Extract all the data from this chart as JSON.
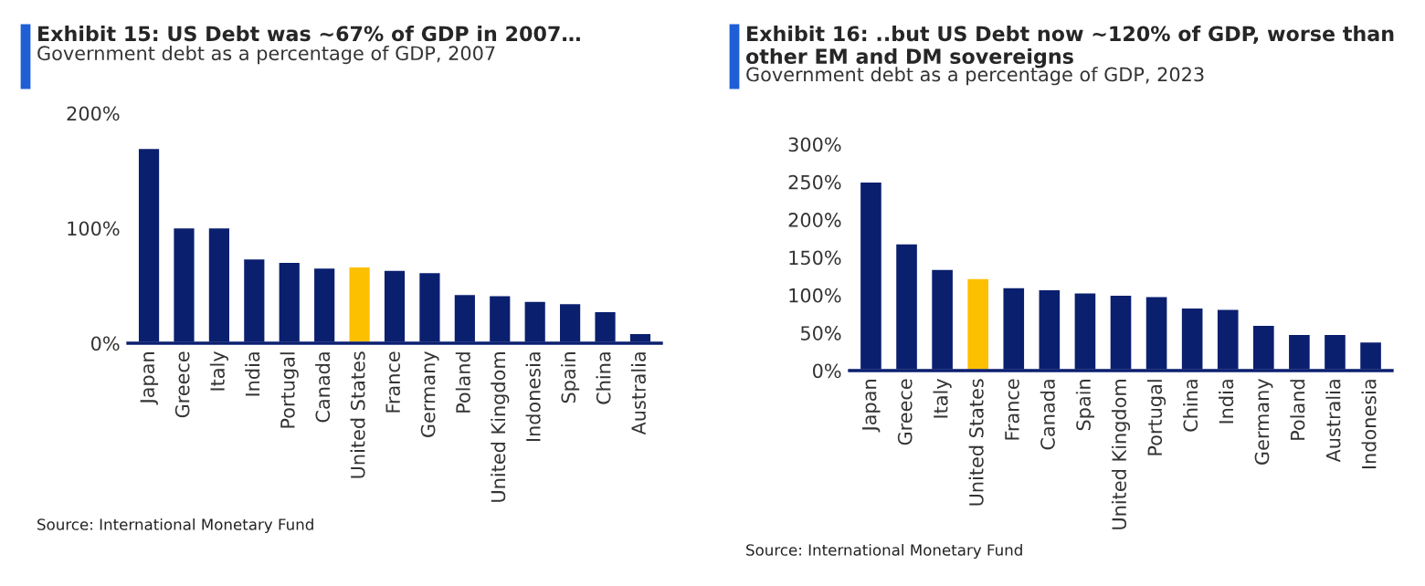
{
  "chart_data": [
    {
      "type": "bar",
      "title": "Exhibit 15: US Debt was ~67% of GDP in 2007…",
      "subtitle": "Government debt as a percentage of GDP, 2007",
      "categories": [
        "Japan",
        "Greece",
        "Italy",
        "India",
        "Portugal",
        "Canada",
        "United States",
        "France",
        "Germany",
        "Poland",
        "United Kingdom",
        "Indonesia",
        "Spain",
        "China",
        "Australia"
      ],
      "values": [
        170,
        101,
        101,
        74,
        71,
        66,
        67,
        64,
        62,
        43,
        42,
        37,
        35,
        28,
        9
      ],
      "colors": [
        "#0b1f6f",
        "#0b1f6f",
        "#0b1f6f",
        "#0b1f6f",
        "#0b1f6f",
        "#0b1f6f",
        "#fcc000",
        "#0b1f6f",
        "#0b1f6f",
        "#0b1f6f",
        "#0b1f6f",
        "#0b1f6f",
        "#0b1f6f",
        "#0b1f6f",
        "#0b1f6f"
      ],
      "ylim": [
        0,
        200
      ],
      "yticks": [
        {
          "value": 0,
          "label": "0%"
        },
        {
          "value": 100,
          "label": "100%"
        },
        {
          "value": 200,
          "label": "200%"
        }
      ],
      "grid": false,
      "annotations": [
        "Source: International Monetary Fund"
      ]
    },
    {
      "type": "bar",
      "title": "Exhibit 16: ..but US Debt now ~120% of GDP, worse than other EM and DM sovereigns",
      "subtitle": "Government debt as a percentage of GDP, 2023",
      "categories": [
        "Japan",
        "Greece",
        "Italy",
        "United States",
        "France",
        "Canada",
        "Spain",
        "United Kingdom",
        "Portugal",
        "China",
        "India",
        "Germany",
        "Poland",
        "Australia",
        "Indonesia"
      ],
      "values": [
        251,
        169,
        135,
        123,
        111,
        108,
        104,
        101,
        99,
        84,
        82,
        61,
        49,
        49,
        39
      ],
      "colors": [
        "#0b1f6f",
        "#0b1f6f",
        "#0b1f6f",
        "#fcc000",
        "#0b1f6f",
        "#0b1f6f",
        "#0b1f6f",
        "#0b1f6f",
        "#0b1f6f",
        "#0b1f6f",
        "#0b1f6f",
        "#0b1f6f",
        "#0b1f6f",
        "#0b1f6f",
        "#0b1f6f"
      ],
      "ylim": [
        0,
        300
      ],
      "yticks": [
        {
          "value": 0,
          "label": "0%"
        },
        {
          "value": 50,
          "label": "50%"
        },
        {
          "value": 100,
          "label": "100%"
        },
        {
          "value": 150,
          "label": "150%"
        },
        {
          "value": 200,
          "label": "200%"
        },
        {
          "value": 250,
          "label": "250%"
        },
        {
          "value": 300,
          "label": "300%"
        }
      ],
      "grid": false,
      "annotations": [
        "Source: International Monetary Fund"
      ]
    }
  ]
}
